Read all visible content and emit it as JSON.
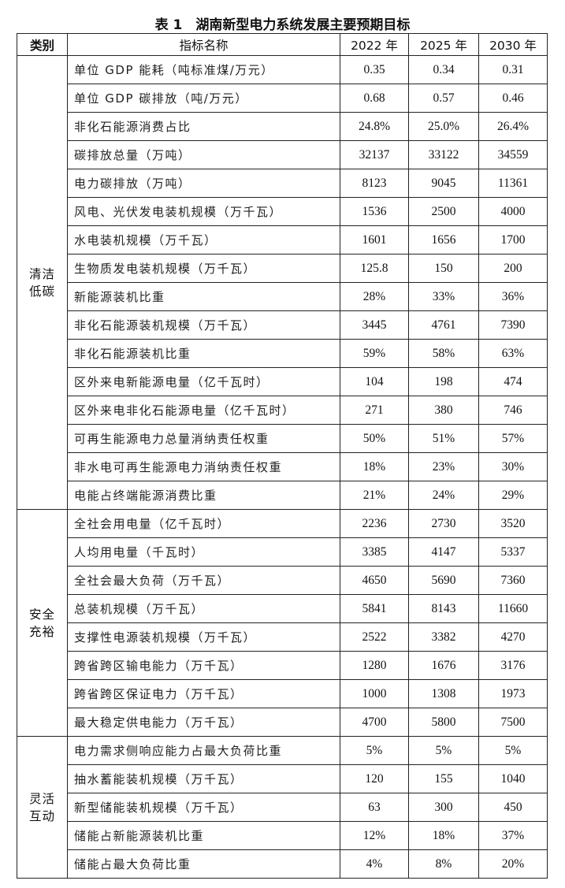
{
  "title": "表 1　湖南新型电力系统发展主要预期目标",
  "headers": [
    "类别",
    "指标名称",
    "2022 年",
    "2025 年",
    "2030 年"
  ],
  "groups": [
    {
      "category": [
        "清洁",
        "低碳"
      ],
      "rows": [
        [
          "单位 GDP 能耗（吨标准煤/万元）",
          "0.35",
          "0.34",
          "0.31"
        ],
        [
          "单位 GDP 碳排放（吨/万元）",
          "0.68",
          "0.57",
          "0.46"
        ],
        [
          "非化石能源消费占比",
          "24.8%",
          "25.0%",
          "26.4%"
        ],
        [
          "碳排放总量（万吨）",
          "32137",
          "33122",
          "34559"
        ],
        [
          "电力碳排放（万吨）",
          "8123",
          "9045",
          "11361"
        ],
        [
          "风电、光伏发电装机规模（万千瓦）",
          "1536",
          "2500",
          "4000"
        ],
        [
          "水电装机规模（万千瓦）",
          "1601",
          "1656",
          "1700"
        ],
        [
          "生物质发电装机规模（万千瓦）",
          "125.8",
          "150",
          "200"
        ],
        [
          "新能源装机比重",
          "28%",
          "33%",
          "36%"
        ],
        [
          "非化石能源装机规模（万千瓦）",
          "3445",
          "4761",
          "7390"
        ],
        [
          "非化石能源装机比重",
          "59%",
          "58%",
          "63%"
        ],
        [
          "区外来电新能源电量（亿千瓦时）",
          "104",
          "198",
          "474"
        ],
        [
          "区外来电非化石能源电量（亿千瓦时）",
          "271",
          "380",
          "746"
        ],
        [
          "可再生能源电力总量消纳责任权重",
          "50%",
          "51%",
          "57%"
        ],
        [
          "非水电可再生能源电力消纳责任权重",
          "18%",
          "23%",
          "30%"
        ],
        [
          "电能占终端能源消费比重",
          "21%",
          "24%",
          "29%"
        ]
      ]
    },
    {
      "category": [
        "安全",
        "充裕"
      ],
      "rows": [
        [
          "全社会用电量（亿千瓦时）",
          "2236",
          "2730",
          "3520"
        ],
        [
          "人均用电量（千瓦时）",
          "3385",
          "4147",
          "5337"
        ],
        [
          "全社会最大负荷（万千瓦）",
          "4650",
          "5690",
          "7360"
        ],
        [
          "总装机规模（万千瓦）",
          "5841",
          "8143",
          "11660"
        ],
        [
          "支撑性电源装机规模（万千瓦）",
          "2522",
          "3382",
          "4270"
        ],
        [
          "跨省跨区输电能力（万千瓦）",
          "1280",
          "1676",
          "3176"
        ],
        [
          "跨省跨区保证电力（万千瓦）",
          "1000",
          "1308",
          "1973"
        ],
        [
          "最大稳定供电能力（万千瓦）",
          "4700",
          "5800",
          "7500"
        ]
      ]
    },
    {
      "category": [
        "灵活",
        "互动"
      ],
      "rows": [
        [
          "电力需求侧响应能力占最大负荷比重",
          "5%",
          "5%",
          "5%"
        ],
        [
          "抽水蓄能装机规模（万千瓦）",
          "120",
          "155",
          "1040"
        ],
        [
          "新型储能装机规模（万千瓦）",
          "63",
          "300",
          "450"
        ],
        [
          "储能占新能源装机比重",
          "12%",
          "18%",
          "37%"
        ],
        [
          "储能占最大负荷比重",
          "4%",
          "8%",
          "20%"
        ]
      ]
    }
  ]
}
